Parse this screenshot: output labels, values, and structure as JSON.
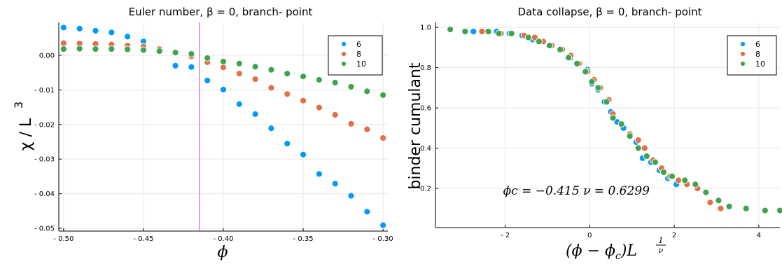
{
  "colors": {
    "6": "#009AFA",
    "8": "#E36F47",
    "10": "#3EA44E",
    "vline": "#C271D2"
  },
  "chart_data": [
    {
      "type": "scatter",
      "title": "Euler number, β = 0, branch- point",
      "xlabel": "ϕ",
      "ylabel": "χ / L",
      "ylabel_sup": "3",
      "xlim": [
        -0.503,
        -0.297
      ],
      "ylim": [
        -0.0508,
        0.0095
      ],
      "xticks": [
        -0.5,
        -0.45,
        -0.4,
        -0.35,
        -0.3
      ],
      "xtick_labels": [
        "- 0.50",
        "- 0.45",
        "- 0.40",
        "- 0.35",
        "- 0.30"
      ],
      "yticks": [
        0.0,
        -0.01,
        -0.02,
        -0.03,
        -0.04,
        -0.05
      ],
      "ytick_labels": [
        "0.00",
        "- 0.01",
        "- 0.02",
        "- 0.03",
        "- 0.04",
        "- 0.05"
      ],
      "grid": true,
      "legend_position": "top-right",
      "vline": -0.415,
      "series": [
        {
          "name": "6",
          "color": "#009AFA",
          "x": [
            -0.5,
            -0.49,
            -0.48,
            -0.47,
            -0.46,
            -0.45,
            -0.44,
            -0.43,
            -0.42,
            -0.41,
            -0.4,
            -0.39,
            -0.38,
            -0.37,
            -0.36,
            -0.35,
            -0.34,
            -0.33,
            -0.32,
            -0.31,
            -0.3
          ],
          "y": [
            0.008,
            0.0077,
            0.0071,
            0.0066,
            0.0054,
            0.004,
            0.0015,
            -0.003,
            -0.0034,
            -0.0073,
            -0.0099,
            -0.0141,
            -0.017,
            -0.0211,
            -0.0255,
            -0.0287,
            -0.0343,
            -0.0371,
            -0.0406,
            -0.0452,
            -0.0491
          ]
        },
        {
          "name": "8",
          "color": "#E36F47",
          "x": [
            -0.5,
            -0.49,
            -0.48,
            -0.47,
            -0.46,
            -0.45,
            -0.44,
            -0.43,
            -0.42,
            -0.41,
            -0.4,
            -0.39,
            -0.38,
            -0.37,
            -0.36,
            -0.35,
            -0.34,
            -0.33,
            -0.32,
            -0.31,
            -0.3
          ],
          "y": [
            0.0035,
            0.0034,
            0.0033,
            0.0031,
            0.0028,
            0.0025,
            0.0018,
            0.0008,
            -0.0003,
            -0.002,
            -0.0035,
            -0.0053,
            -0.0069,
            -0.0094,
            -0.0112,
            -0.0131,
            -0.0151,
            -0.0172,
            -0.0198,
            -0.0214,
            -0.0239
          ]
        },
        {
          "name": "10",
          "color": "#3EA44E",
          "x": [
            -0.5,
            -0.49,
            -0.48,
            -0.47,
            -0.46,
            -0.45,
            -0.44,
            -0.43,
            -0.42,
            -0.41,
            -0.4,
            -0.39,
            -0.38,
            -0.37,
            -0.36,
            -0.35,
            -0.34,
            -0.33,
            -0.32,
            -0.31,
            -0.3
          ],
          "y": [
            0.0018,
            0.0019,
            0.0018,
            0.0018,
            0.0017,
            0.0015,
            0.0012,
            0.0008,
            0.0004,
            -0.0008,
            -0.0018,
            -0.0024,
            -0.0033,
            -0.0042,
            -0.0053,
            -0.0061,
            -0.0071,
            -0.0079,
            -0.0091,
            -0.0104,
            -0.0115
          ]
        }
      ]
    },
    {
      "type": "scatter",
      "title": "Data collapse, β = 0, branch- point",
      "xlabel": "(ϕ − ϕ",
      "xlabel_sub": "c",
      "xlabel_tail": ")L",
      "xlabel_exp_num": "1",
      "xlabel_exp_den": "ν",
      "ylabel": "binder cumulant",
      "xlim": [
        -3.65,
        4.5
      ],
      "ylim": [
        0.005,
        1.025
      ],
      "xticks": [
        -2,
        0,
        2,
        4
      ],
      "xtick_labels": [
        "- 2",
        "0",
        "2",
        "4"
      ],
      "yticks": [
        0.2,
        0.4,
        0.6,
        0.8,
        1.0
      ],
      "ytick_labels": [
        "0.2",
        "0.4",
        "0.6",
        "0.8",
        "1.0"
      ],
      "grid": true,
      "legend_position": "top-right",
      "annotation": {
        "text": "ϕc = −0.415    ν = 0.6299",
        "x": -2.0,
        "y": 0.19
      },
      "series": [
        {
          "name": "6",
          "color": "#009AFA",
          "x": [
            -3.3,
            -2.75,
            -2.2,
            -1.9,
            -1.6,
            -1.35,
            -1.1,
            -0.9,
            -0.7,
            -0.45,
            -0.25,
            -0.05,
            0.05,
            0.2,
            0.35,
            0.5,
            0.65,
            0.8,
            0.95,
            1.1,
            1.25,
            1.45,
            1.65,
            1.85,
            2.05
          ],
          "y": [
            0.99,
            0.98,
            0.98,
            0.97,
            0.96,
            0.94,
            0.93,
            0.91,
            0.89,
            0.85,
            0.82,
            0.79,
            0.72,
            0.69,
            0.63,
            0.58,
            0.53,
            0.5,
            0.47,
            0.43,
            0.35,
            0.33,
            0.29,
            0.25,
            0.22
          ]
        },
        {
          "name": "8",
          "color": "#E36F47",
          "x": [
            -2.55,
            -2.1,
            -1.85,
            -1.55,
            -1.3,
            -1.1,
            -0.9,
            -0.65,
            -0.45,
            -0.25,
            -0.05,
            0.1,
            0.25,
            0.45,
            0.55,
            0.75,
            0.95,
            1.15,
            1.3,
            1.5,
            1.7,
            1.9,
            2.1,
            2.3,
            2.55,
            2.85,
            3.1
          ],
          "y": [
            0.98,
            0.97,
            0.97,
            0.96,
            0.95,
            0.93,
            0.91,
            0.89,
            0.86,
            0.82,
            0.78,
            0.74,
            0.7,
            0.64,
            0.57,
            0.52,
            0.47,
            0.44,
            0.4,
            0.34,
            0.3,
            0.26,
            0.24,
            0.22,
            0.2,
            0.13,
            0.1
          ]
        },
        {
          "name": "10",
          "color": "#3EA44E",
          "x": [
            -3.3,
            -2.95,
            -2.4,
            -2.15,
            -1.85,
            -1.45,
            -1.2,
            -0.95,
            -0.7,
            -0.5,
            -0.3,
            -0.1,
            0.05,
            0.2,
            0.4,
            0.55,
            0.75,
            0.95,
            1.15,
            1.35,
            1.55,
            1.75,
            1.95,
            2.25,
            2.5,
            2.75,
            3.05,
            3.3,
            3.7,
            4.15,
            4.5
          ],
          "y": [
            0.99,
            0.98,
            0.98,
            0.97,
            0.97,
            0.95,
            0.93,
            0.91,
            0.89,
            0.85,
            0.82,
            0.78,
            0.73,
            0.7,
            0.63,
            0.55,
            0.52,
            0.46,
            0.4,
            0.36,
            0.33,
            0.28,
            0.26,
            0.24,
            0.22,
            0.18,
            0.14,
            0.11,
            0.1,
            0.09,
            0.09
          ]
        }
      ]
    }
  ]
}
